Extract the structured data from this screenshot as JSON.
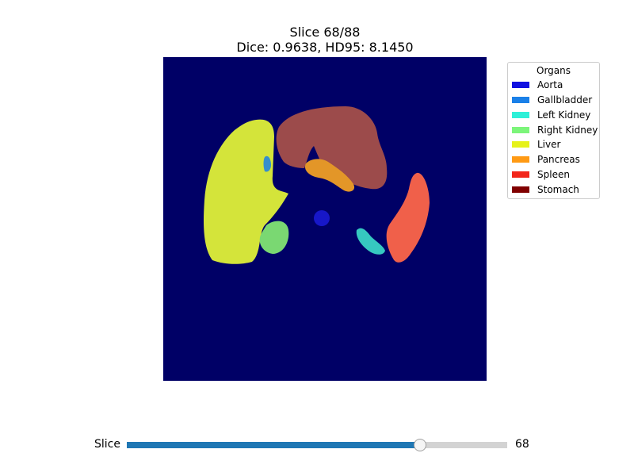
{
  "header": {
    "slice_line": "Slice 68/88",
    "metrics_line": "Dice: 0.9638, HD95: 8.1450"
  },
  "legend": {
    "title": "Organs",
    "items": [
      {
        "label": "Aorta",
        "color": "#1010e0"
      },
      {
        "label": "Gallbladder",
        "color": "#1a80e8"
      },
      {
        "label": "Left Kidney",
        "color": "#2ef0d8"
      },
      {
        "label": "Right Kidney",
        "color": "#7cf57a"
      },
      {
        "label": "Liver",
        "color": "#e6f21a"
      },
      {
        "label": "Pancreas",
        "color": "#ff9a14"
      },
      {
        "label": "Spleen",
        "color": "#f2261a"
      },
      {
        "label": "Stomach",
        "color": "#800000"
      }
    ]
  },
  "image": {
    "background_color": "#000066"
  },
  "slider": {
    "label": "Slice",
    "value": "68",
    "min": 1,
    "max": 88
  }
}
